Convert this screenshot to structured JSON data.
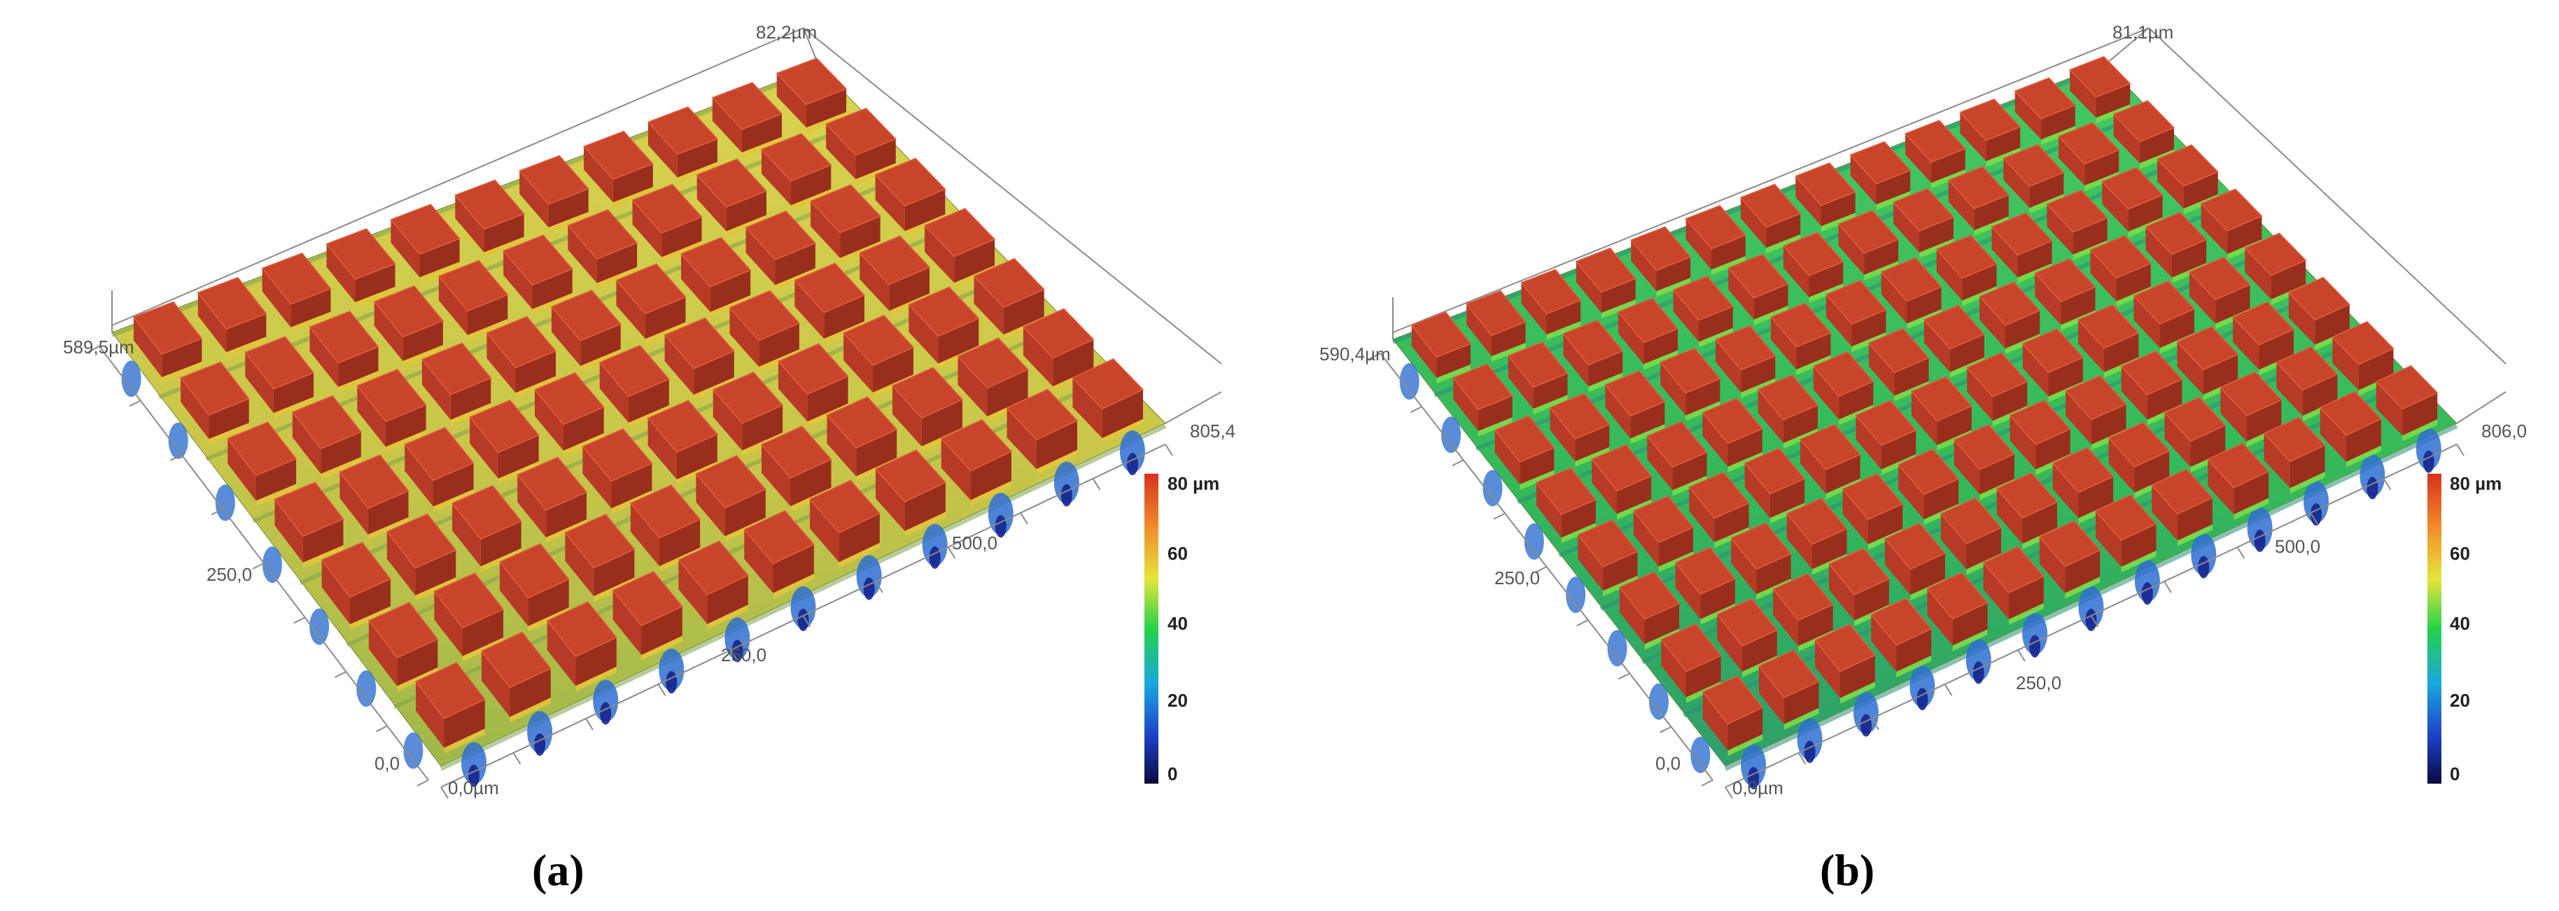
{
  "panels": [
    {
      "caption": "(a)",
      "z_max_label": "82,2µm",
      "y_max_label": "589,5µm",
      "y_mid_label": "250,0",
      "y_zero_label": "0,0",
      "x_zero_label": "0,0µm",
      "x_mid_label": "250,0",
      "x_mid2_label": "500,0",
      "x_max_label": "805,4",
      "colorbar": {
        "ticks": [
          "80 µm",
          "60",
          "40",
          "20",
          "0"
        ]
      },
      "grid": {
        "rows": 7,
        "cols": 11
      }
    },
    {
      "caption": "(b)",
      "z_max_label": "81,1µm",
      "y_max_label": "590,4µm",
      "y_mid_label": "250,0",
      "y_zero_label": "0,0",
      "x_zero_label": "0,0µm",
      "x_mid_label": "250,0",
      "x_mid2_label": "500,0",
      "x_max_label": "806,0",
      "colorbar": {
        "ticks": [
          "80 µm",
          "60",
          "40",
          "20",
          "0"
        ]
      },
      "grid": {
        "rows": 8,
        "cols": 13
      }
    }
  ],
  "colors": {
    "peak": "#c8452c",
    "peak_dark": "#9a2e1c",
    "mid": "#d9cf4a",
    "green": "#3fbf55",
    "low": "#2f6fd0",
    "deep": "#16258e"
  }
}
